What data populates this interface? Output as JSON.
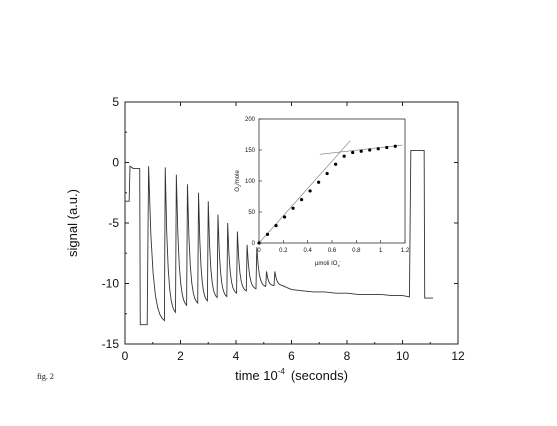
{
  "caption": "fig. 2",
  "chart_data": [
    {
      "type": "line",
      "xlabel": "time 10",
      "xlabel_sup": "-4",
      "xlabel_unit": "(seconds)",
      "ylabel": "signal (a.u.)",
      "xlim": [
        0,
        12
      ],
      "ylim": [
        -15,
        5
      ],
      "xticks": [
        "0",
        "2",
        "4",
        "6",
        "8",
        "10",
        "12"
      ],
      "yticks": [
        "5",
        "0",
        "-5",
        "-10",
        "-15"
      ],
      "grid": false,
      "signal": {
        "start_level": -3.2,
        "initial_step": {
          "t": 0.15,
          "to": -0.3
        },
        "pre_drop_level": -0.5,
        "first_drop": {
          "t": 0.55,
          "to": -13.4
        },
        "pulses": [
          {
            "t": 0.85,
            "peak": -0.3,
            "trough": -13.3
          },
          {
            "t": 1.45,
            "peak": -0.4,
            "trough": -12.6
          },
          {
            "t": 1.85,
            "peak": -1.0,
            "trough": -12.0
          },
          {
            "t": 2.25,
            "peak": -1.8,
            "trough": -11.8
          },
          {
            "t": 2.65,
            "peak": -2.5,
            "trough": -11.6
          },
          {
            "t": 3.0,
            "peak": -3.2,
            "trough": -11.3
          },
          {
            "t": 3.35,
            "peak": -4.3,
            "trough": -11.2
          },
          {
            "t": 3.7,
            "peak": -5.0,
            "trough": -10.9
          },
          {
            "t": 4.05,
            "peak": -5.7,
            "trough": -10.7
          },
          {
            "t": 4.4,
            "peak": -6.8,
            "trough": -10.5
          },
          {
            "t": 4.75,
            "peak": -7.0,
            "trough": -10.3
          },
          {
            "t": 5.1,
            "peak": -9.0,
            "trough": -10.2
          },
          {
            "t": 5.4,
            "peak": -9.0,
            "trough": -10.2
          }
        ],
        "plateau": [
          [
            5.7,
            -10.2
          ],
          [
            6.0,
            -10.5
          ],
          [
            6.4,
            -10.6
          ],
          [
            6.8,
            -10.7
          ],
          [
            7.2,
            -10.7
          ],
          [
            7.6,
            -10.8
          ],
          [
            8.0,
            -10.8
          ],
          [
            8.4,
            -10.9
          ],
          [
            8.8,
            -10.9
          ],
          [
            9.2,
            -10.9
          ],
          [
            9.6,
            -11.0
          ],
          [
            10.0,
            -11.0
          ],
          [
            10.25,
            -11.1
          ]
        ],
        "final_step": {
          "t": 10.3,
          "to": 1.0
        },
        "final_drop": {
          "t": 10.8,
          "to": -11.2
        },
        "end_t": 11.1
      }
    },
    {
      "type": "scatter",
      "xlabel": "µmoli IO",
      "xlabel_sub": "4",
      "xlabel_sup": "-",
      "ylabel": "O",
      "ylabel_sub": "2",
      "ylabel_unit": "/mole",
      "xlim": [
        0,
        1.2
      ],
      "ylim": [
        0,
        200
      ],
      "xticks": [
        "0",
        "0.2",
        "0.4",
        "0.6",
        "0.8",
        "1",
        "1.2"
      ],
      "yticks": [
        "200",
        "150",
        "100",
        "50",
        "0"
      ],
      "grid": false,
      "x": [
        0,
        0.07,
        0.14,
        0.21,
        0.28,
        0.35,
        0.42,
        0.49,
        0.56,
        0.63,
        0.7,
        0.77,
        0.84,
        0.91,
        0.98,
        1.05,
        1.12
      ],
      "y": [
        0,
        14,
        28,
        42,
        56,
        70,
        84,
        98,
        112,
        127,
        140,
        146,
        148,
        150,
        152,
        154,
        156
      ],
      "fit_lines": [
        {
          "x": [
            0,
            0.75
          ],
          "y": [
            0,
            165
          ]
        },
        {
          "x": [
            0.5,
            1.18
          ],
          "y": [
            143,
            158
          ]
        }
      ]
    }
  ]
}
